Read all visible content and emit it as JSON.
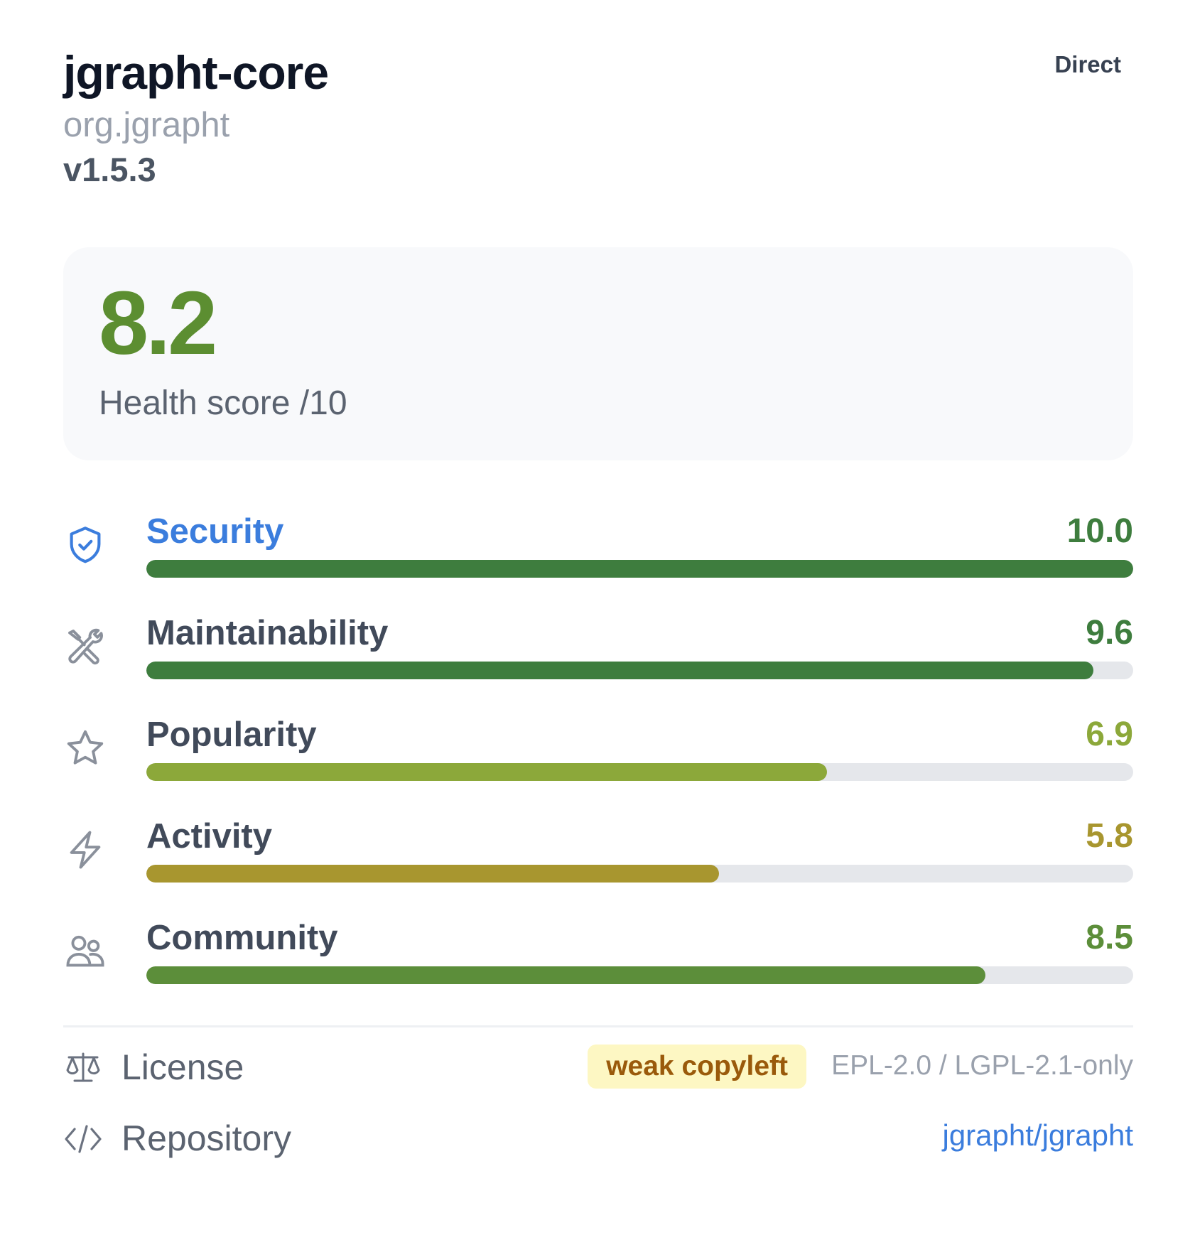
{
  "package": {
    "name": "jgrapht-core",
    "group": "org.jgrapht",
    "version": "v1.5.3",
    "relation": "Direct"
  },
  "health": {
    "score": "8.2",
    "label": "Health score /10",
    "color": "#5c8e31"
  },
  "metrics": [
    {
      "label": "Security",
      "value": "10.0",
      "fraction": 1.0,
      "icon": "shield-check-icon",
      "label_color": "#3b7ddd",
      "color": "#3e7d3e"
    },
    {
      "label": "Maintainability",
      "value": "9.6",
      "fraction": 0.96,
      "icon": "wrench-screwdriver-icon",
      "label_color": "#414a5a",
      "color": "#3e7d3e"
    },
    {
      "label": "Popularity",
      "value": "6.9",
      "fraction": 0.69,
      "icon": "star-icon",
      "label_color": "#414a5a",
      "color": "#8ca83a"
    },
    {
      "label": "Activity",
      "value": "5.8",
      "fraction": 0.58,
      "icon": "lightning-icon",
      "label_color": "#414a5a",
      "color": "#a8962f"
    },
    {
      "label": "Community",
      "value": "8.5",
      "fraction": 0.85,
      "icon": "users-icon",
      "label_color": "#414a5a",
      "color": "#5c8e3a"
    }
  ],
  "license": {
    "label": "License",
    "badge": "weak copyleft",
    "value": "EPL-2.0 / LGPL-2.1-only",
    "icon": "scale-icon"
  },
  "repository": {
    "label": "Repository",
    "value": "jgrapht/jgrapht",
    "icon": "code-icon"
  }
}
